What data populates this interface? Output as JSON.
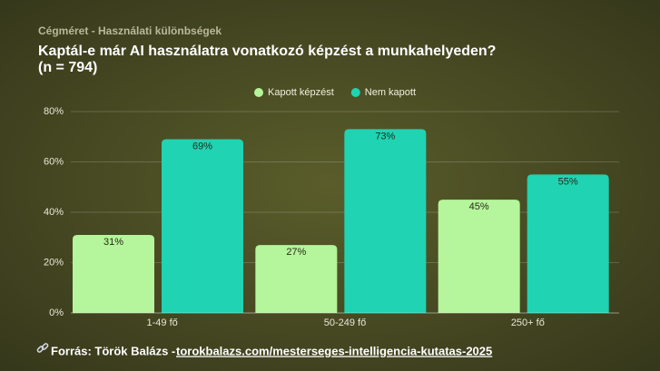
{
  "chart_data": {
    "type": "bar",
    "kicker": "Cégméret - Használati különbségek",
    "title": "Kaptál-e már AI használatra vonatkozó képzést a munkahelyeden?",
    "sample_note": "(n = 794)",
    "categories": [
      "1-49 fő",
      "50-249 fő",
      "250+ fő"
    ],
    "series": [
      {
        "name": "Kapott képzést",
        "color": "#b5f59b",
        "values": [
          31,
          27,
          45
        ],
        "value_labels": [
          "31%",
          "27%",
          "45%"
        ]
      },
      {
        "name": "Nem kapott",
        "color": "#1fd3b3",
        "values": [
          69,
          73,
          55
        ],
        "value_labels": [
          "69%",
          "73%",
          "55%"
        ]
      }
    ],
    "ylim": [
      0,
      80
    ],
    "yticks": [
      {
        "value": 0,
        "label": "0%"
      },
      {
        "value": 20,
        "label": "20%"
      },
      {
        "value": 40,
        "label": "40%"
      },
      {
        "value": 60,
        "label": "60%"
      },
      {
        "value": 80,
        "label": "80%"
      }
    ],
    "grid": true,
    "legend": "top",
    "source": "Forrás: Török Balázs -",
    "source_link": "torokbalazs.com/mesterseges-intelligencia-kutatas-2025"
  }
}
